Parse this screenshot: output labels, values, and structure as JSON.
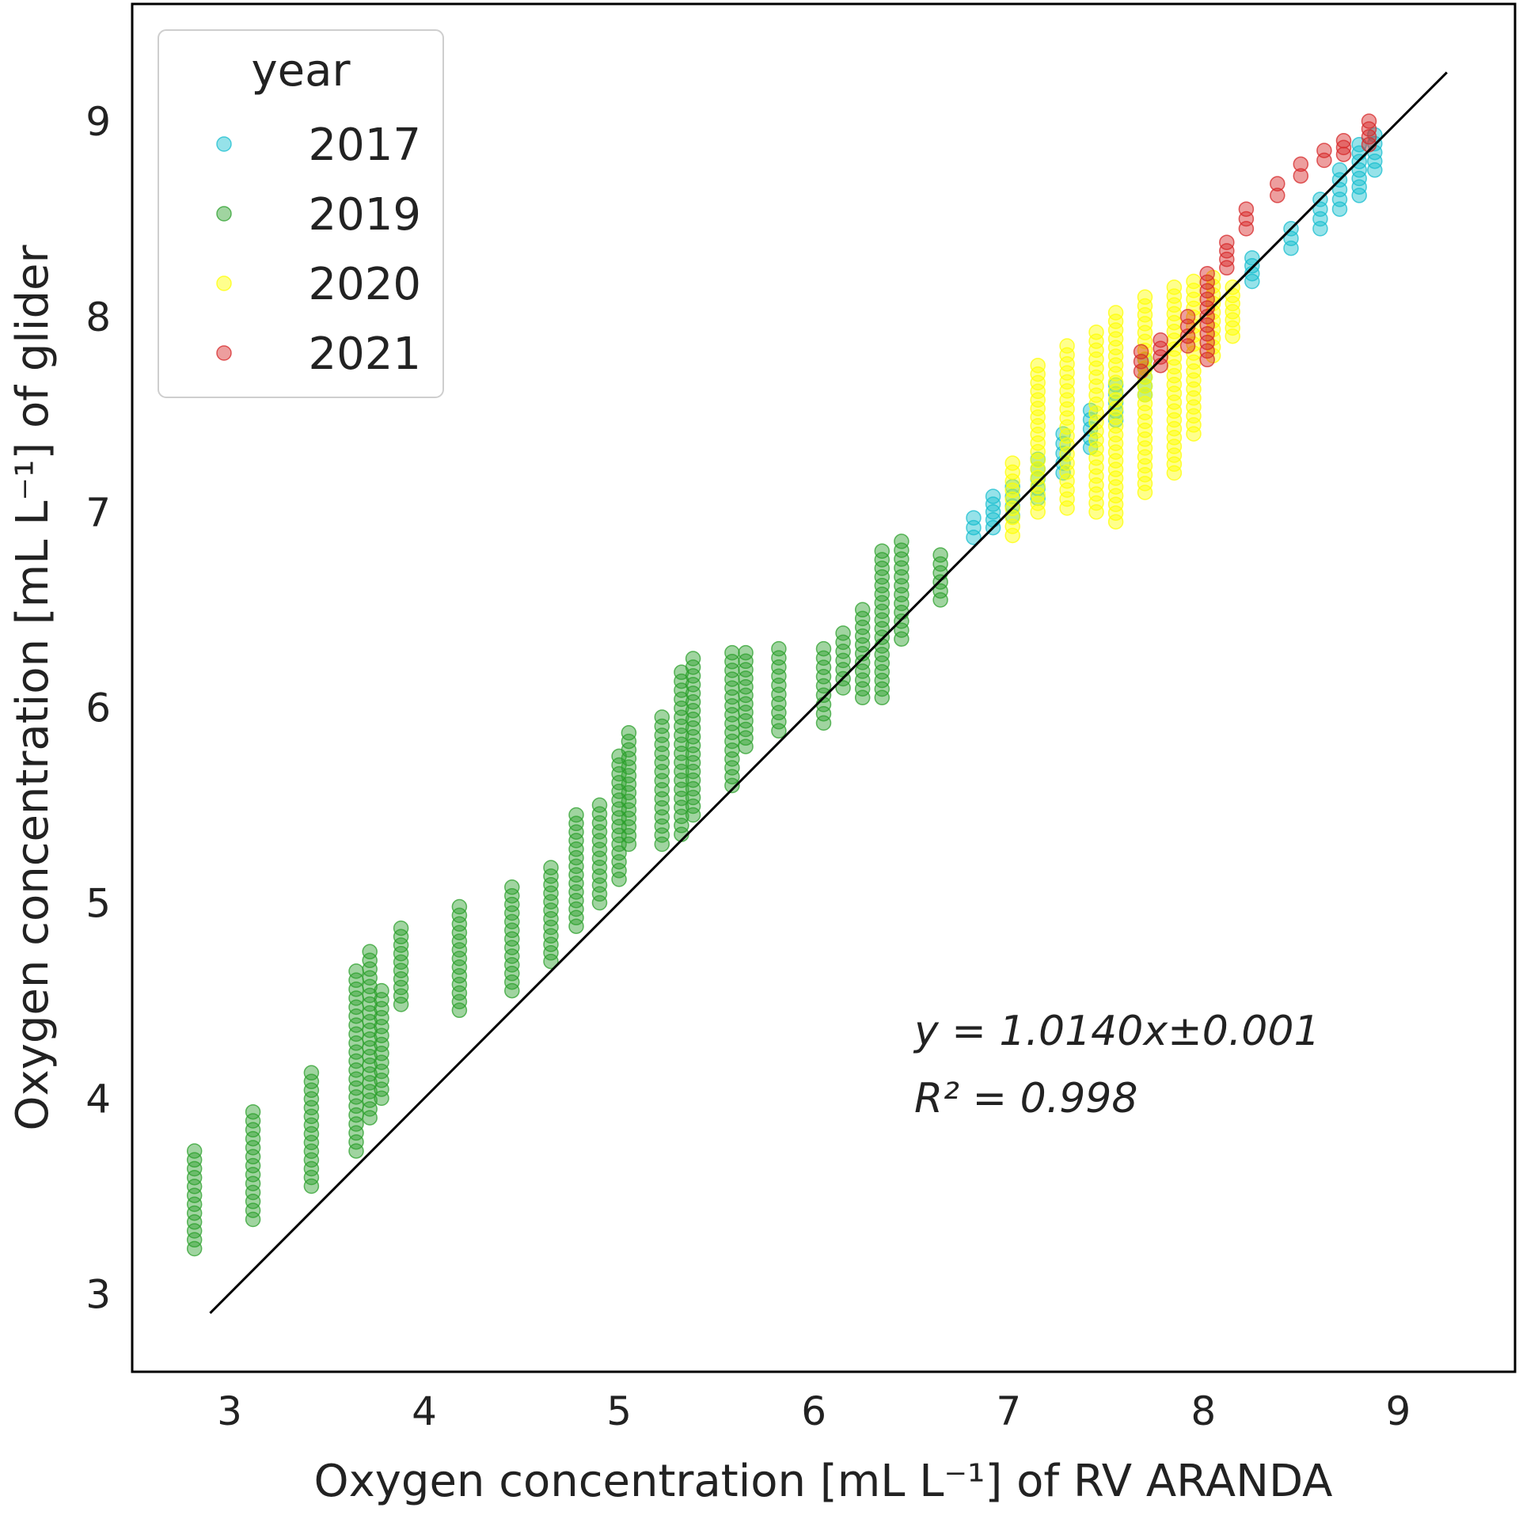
{
  "chart_data": {
    "type": "scatter",
    "title": "",
    "xlabel": "Oxygen concentration [mL L⁻¹] of RV ARANDA",
    "ylabel": "Oxygen concentration [mL L⁻¹] of glider",
    "xlim": [
      2.5,
      9.6
    ],
    "ylim": [
      2.6,
      9.6
    ],
    "xticks": [
      3,
      4,
      5,
      6,
      7,
      8,
      9
    ],
    "yticks": [
      3,
      4,
      5,
      6,
      7,
      8,
      9
    ],
    "xtick_labels": [
      "3",
      "4",
      "5",
      "6",
      "7",
      "8",
      "9"
    ],
    "ytick_labels": [
      "3",
      "4",
      "5",
      "6",
      "7",
      "8",
      "9"
    ],
    "grid": false,
    "legend": {
      "title": "year",
      "placement": "top-left",
      "entries": [
        {
          "label": "2017",
          "color": "#17becf"
        },
        {
          "label": "2019",
          "color": "#2ca02c"
        },
        {
          "label": "2020",
          "color": "#ffff00"
        },
        {
          "label": "2021",
          "color": "#d62728"
        }
      ]
    },
    "reference_line": {
      "x": [
        2.9,
        9.25
      ],
      "y": [
        2.9,
        9.25
      ],
      "color": "#000000"
    },
    "annotations": [
      {
        "text": "y = 1.0140x±0.001"
      },
      {
        "text": "R² = 0.998"
      }
    ],
    "series": [
      {
        "name": "2019",
        "color": "#2ca02c",
        "columns": [
          [
            2.82,
            3.23,
            3.73
          ],
          [
            3.12,
            3.38,
            3.93
          ],
          [
            3.42,
            3.55,
            4.13
          ],
          [
            3.65,
            3.73,
            4.65
          ],
          [
            3.72,
            3.9,
            4.75
          ],
          [
            3.78,
            4.0,
            4.55
          ],
          [
            3.88,
            4.48,
            4.87
          ],
          [
            4.18,
            4.45,
            4.98
          ],
          [
            4.45,
            4.55,
            5.08
          ],
          [
            4.65,
            4.7,
            5.18
          ],
          [
            4.78,
            4.88,
            5.45
          ],
          [
            4.9,
            5.0,
            5.5
          ],
          [
            5.0,
            5.12,
            5.75
          ],
          [
            5.05,
            5.3,
            5.87
          ],
          [
            5.22,
            5.3,
            5.95
          ],
          [
            5.32,
            5.35,
            6.18
          ],
          [
            5.38,
            5.45,
            6.25
          ],
          [
            5.58,
            5.6,
            6.28
          ],
          [
            5.65,
            5.8,
            6.28
          ],
          [
            5.82,
            5.88,
            6.3
          ],
          [
            6.05,
            5.92,
            6.3
          ],
          [
            6.15,
            6.1,
            6.38
          ],
          [
            6.25,
            6.05,
            6.5
          ],
          [
            6.35,
            6.05,
            6.8
          ],
          [
            6.45,
            6.35,
            6.85
          ],
          [
            6.65,
            6.55,
            6.78
          ]
        ]
      },
      {
        "name": "2017",
        "color": "#17becf",
        "columns": [
          [
            6.82,
            6.87,
            6.97
          ],
          [
            6.92,
            6.92,
            7.08
          ],
          [
            7.02,
            6.98,
            7.13
          ],
          [
            7.15,
            7.07,
            7.27
          ],
          [
            7.28,
            7.2,
            7.4
          ],
          [
            7.42,
            7.33,
            7.52
          ],
          [
            7.55,
            7.47,
            7.65
          ],
          [
            7.7,
            7.6,
            7.78
          ],
          [
            8.25,
            8.18,
            8.3
          ],
          [
            8.45,
            8.35,
            8.45
          ],
          [
            8.6,
            8.45,
            8.6
          ],
          [
            8.7,
            8.55,
            8.75
          ],
          [
            8.8,
            8.62,
            8.88
          ],
          [
            8.88,
            8.75,
            8.93
          ]
        ]
      },
      {
        "name": "2020",
        "color": "#ffff00",
        "columns": [
          [
            7.02,
            6.88,
            7.25
          ],
          [
            7.15,
            7.0,
            7.75
          ],
          [
            7.3,
            7.02,
            7.85
          ],
          [
            7.45,
            7.0,
            7.92
          ],
          [
            7.55,
            6.95,
            8.02
          ],
          [
            7.7,
            7.1,
            8.1
          ],
          [
            7.85,
            7.2,
            8.15
          ],
          [
            7.95,
            7.4,
            8.18
          ],
          [
            8.05,
            7.8,
            8.2
          ],
          [
            8.15,
            7.9,
            8.15
          ]
        ]
      },
      {
        "name": "2021",
        "color": "#d62728",
        "columns": [
          [
            7.68,
            7.72,
            7.82
          ],
          [
            7.78,
            7.75,
            7.88
          ],
          [
            7.92,
            7.85,
            8.0
          ],
          [
            8.02,
            7.78,
            8.22
          ],
          [
            8.12,
            8.25,
            8.38
          ],
          [
            8.22,
            8.45,
            8.55
          ],
          [
            8.38,
            8.62,
            8.68
          ],
          [
            8.5,
            8.72,
            8.78
          ],
          [
            8.62,
            8.8,
            8.85
          ],
          [
            8.72,
            8.83,
            8.9
          ],
          [
            8.85,
            8.88,
            9.0
          ]
        ]
      }
    ]
  }
}
